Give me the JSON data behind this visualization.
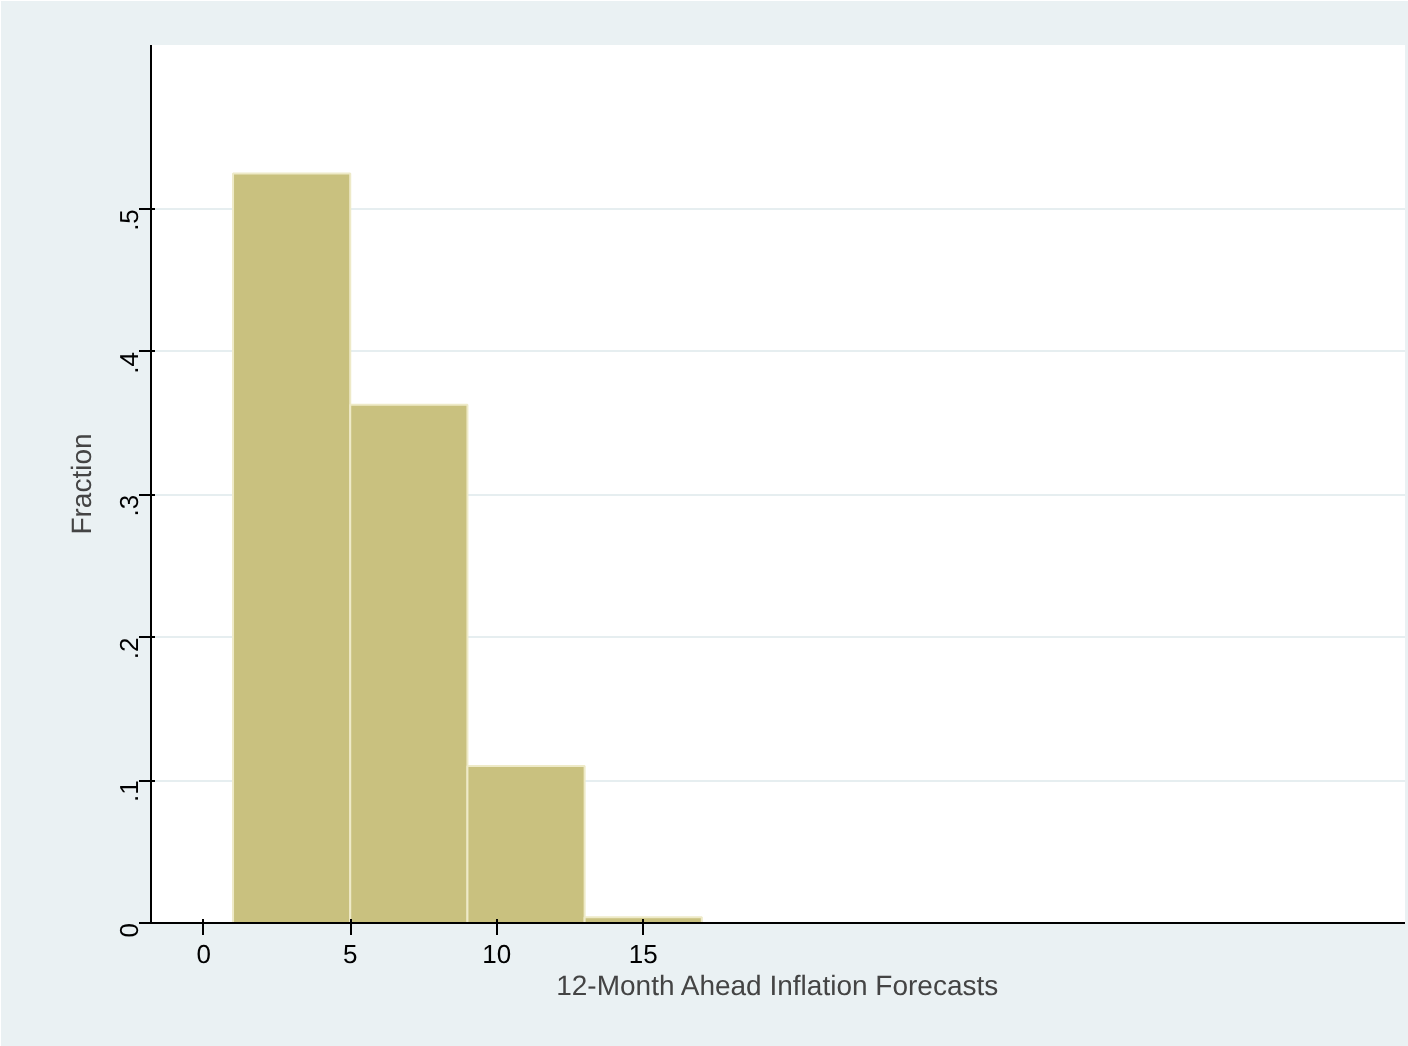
{
  "chart_data": {
    "type": "histogram",
    "xlabel": "12-Month Ahead Inflation Forecasts",
    "ylabel": "Fraction",
    "bins": [
      1,
      5,
      9,
      13,
      17
    ],
    "values": [
      0.525,
      0.363,
      0.11,
      0.004
    ],
    "color": "#c9c17f",
    "xlim": [
      -1.8,
      41
    ],
    "ylim": [
      0,
      0.615
    ],
    "xticks": [
      0,
      5,
      10,
      15
    ],
    "yticks": [
      0,
      {
        "value": 0.1,
        "label": ".1"
      },
      {
        "value": 0.2,
        "label": ".2"
      },
      {
        "value": 0.3,
        "label": ".3"
      },
      {
        "value": 0.4,
        "label": ".4"
      },
      {
        "value": 0.5,
        "label": ".5"
      }
    ],
    "grid": "y"
  }
}
